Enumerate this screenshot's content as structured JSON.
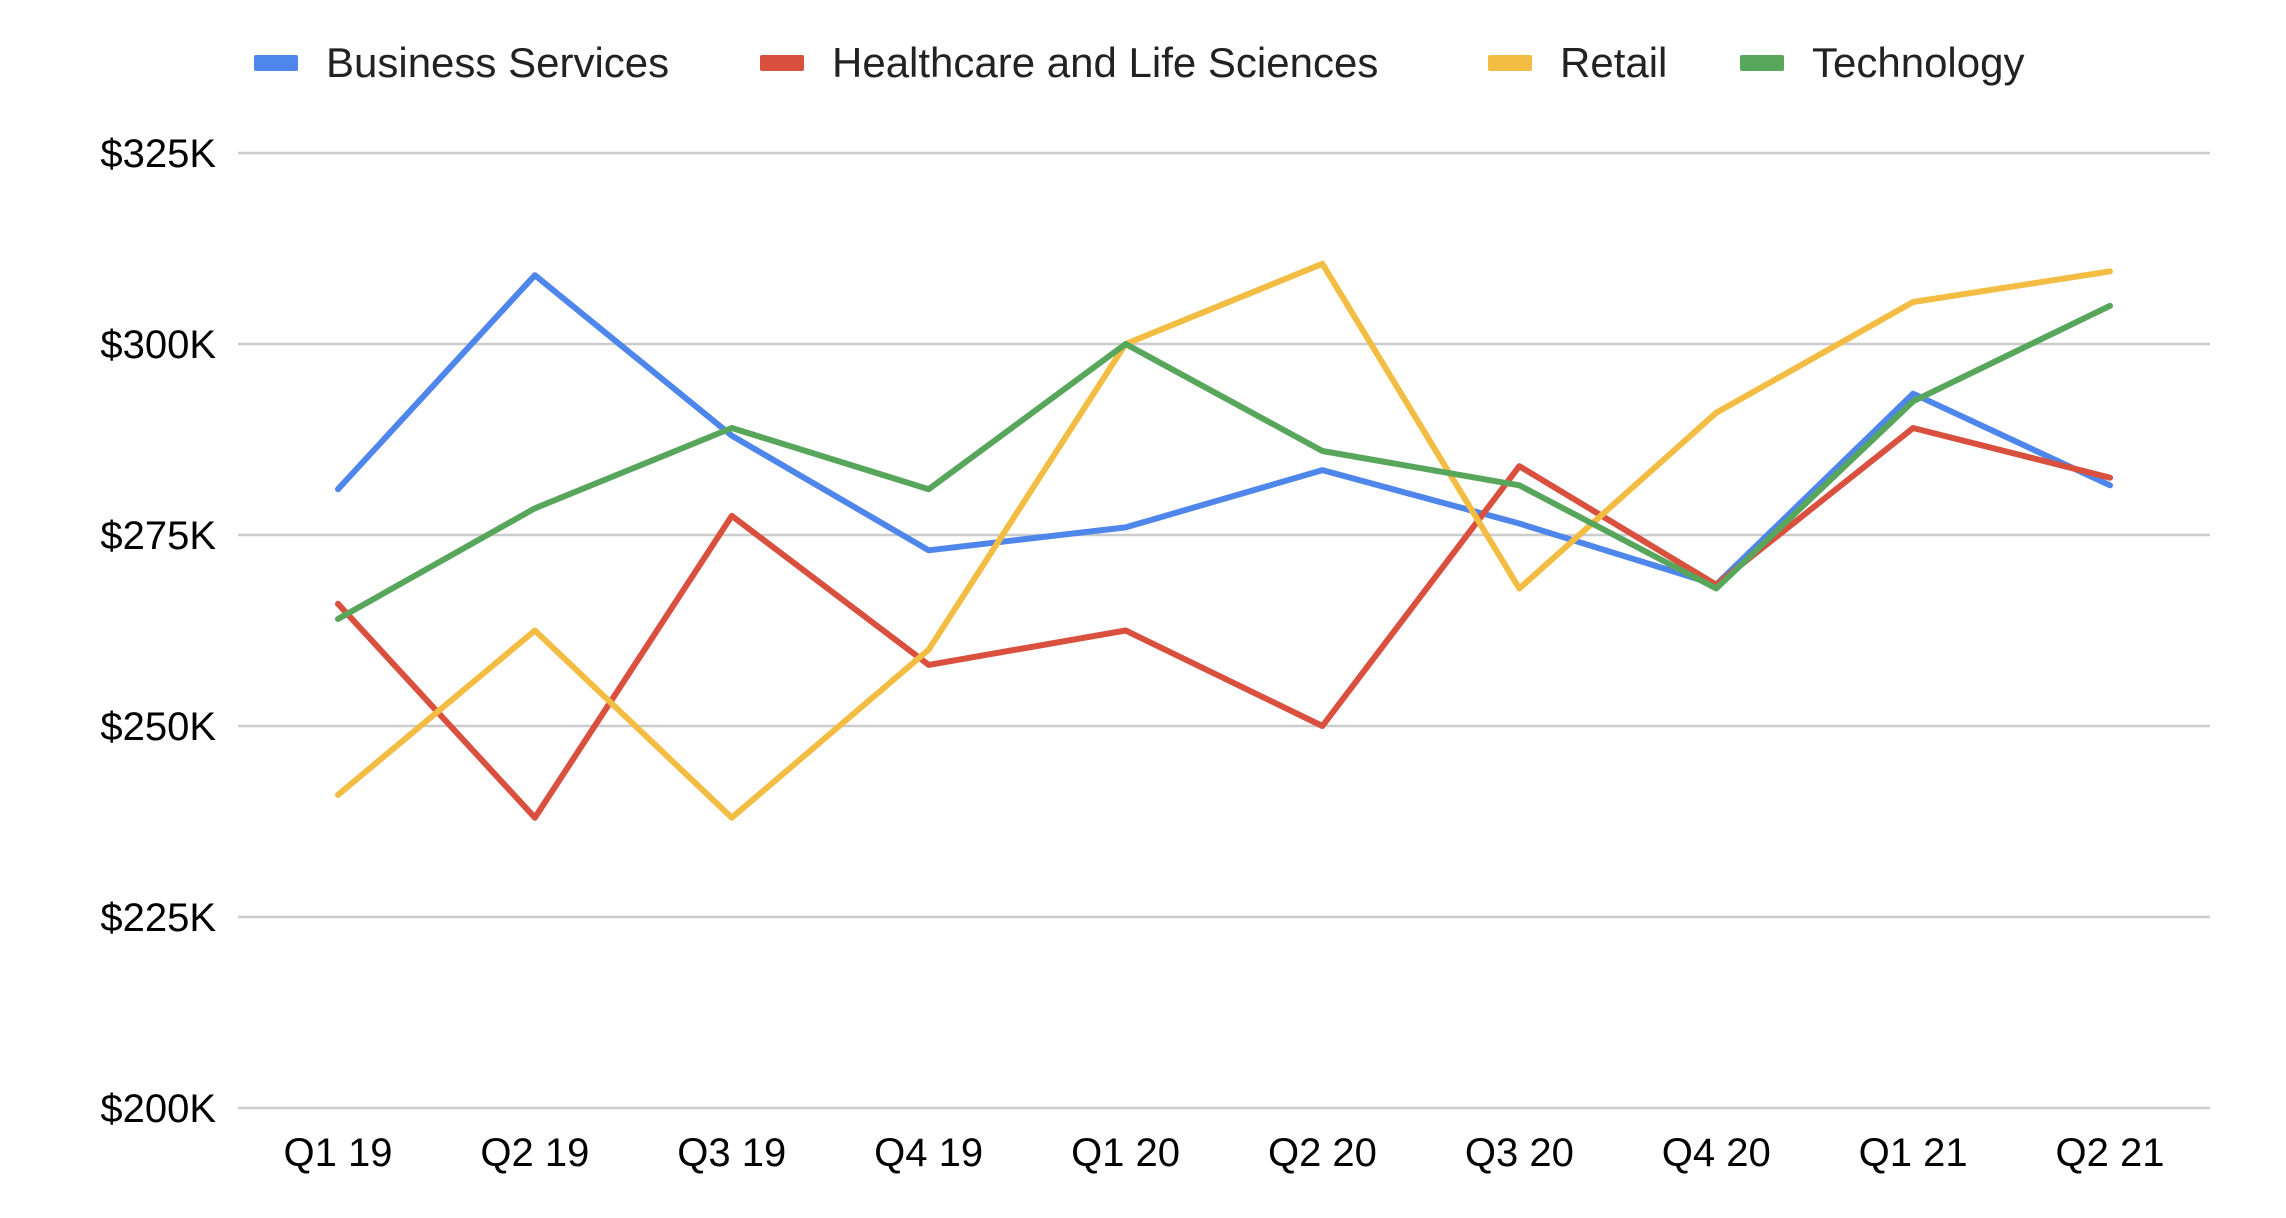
{
  "chart_data": {
    "type": "line",
    "title": "",
    "xlabel": "",
    "ylabel": "",
    "categories": [
      "Q1 19",
      "Q2 19",
      "Q3 19",
      "Q4 19",
      "Q1 20",
      "Q2 20",
      "Q3 20",
      "Q4 20",
      "Q1 21",
      "Q2 21"
    ],
    "ylim": [
      200000,
      325000
    ],
    "yticks": [
      200000,
      225000,
      250000,
      275000,
      300000,
      325000
    ],
    "ytick_labels": [
      "$200K",
      "$225K",
      "$250K",
      "$275K",
      "$300K",
      "$325K"
    ],
    "grid": true,
    "legend_position": "top",
    "series": [
      {
        "name": "Business Services",
        "color": "#4f86ec",
        "values": [
          281000,
          309000,
          288000,
          273000,
          276000,
          283500,
          276500,
          268500,
          293500,
          281500
        ]
      },
      {
        "name": "Healthcare and Life Sciences",
        "color": "#d9503f",
        "values": [
          266000,
          238000,
          277500,
          258000,
          262500,
          250000,
          284000,
          268500,
          289000,
          282500
        ]
      },
      {
        "name": "Retail",
        "color": "#f2bd42",
        "values": [
          241000,
          262500,
          238000,
          260000,
          300000,
          310500,
          268000,
          291000,
          305500,
          309500
        ]
      },
      {
        "name": "Technology",
        "color": "#58a65c",
        "values": [
          264000,
          278500,
          289000,
          281000,
          300000,
          286000,
          281500,
          268000,
          292500,
          305000
        ]
      }
    ]
  }
}
